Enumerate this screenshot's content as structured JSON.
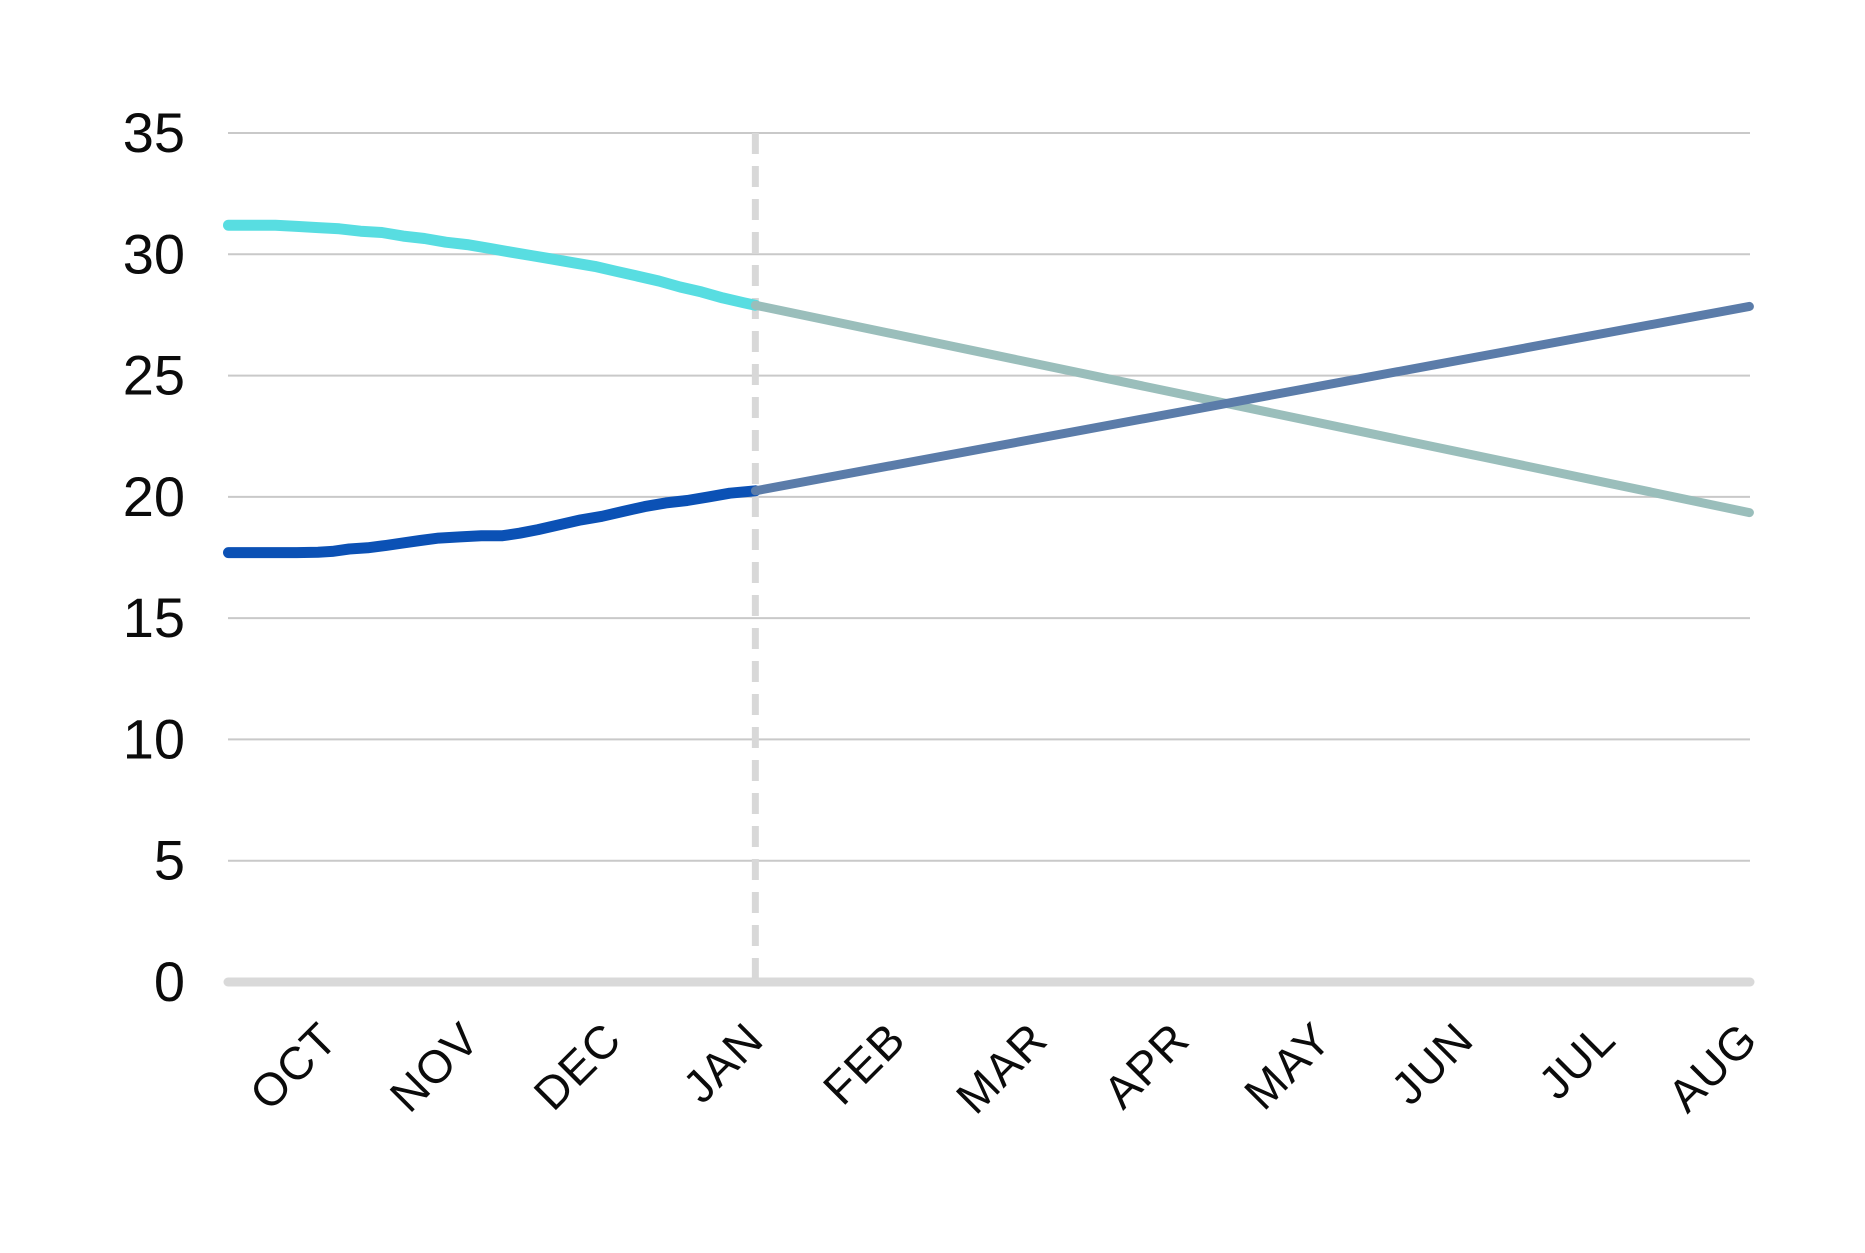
{
  "chart_data": {
    "type": "line",
    "title": "",
    "x_axis": {
      "categories": [
        "OCT",
        "NOV",
        "DEC",
        "JAN",
        "FEB",
        "MAR",
        "APR",
        "MAY",
        "JUN",
        "JUL",
        "AUG"
      ],
      "label_rotation_deg": -45
    },
    "y_axis": {
      "ticks": [
        0,
        5,
        10,
        15,
        20,
        25,
        30,
        35
      ],
      "range": [
        0,
        35
      ],
      "grid": true
    },
    "legend": "none",
    "forecast_divider_month": 3.08,
    "colors": {
      "actual_upper": "#58dde1",
      "actual_lower": "#0b51b5",
      "forecast_upper": "#9abebb",
      "forecast_lower": "#5b7ca9",
      "gridline": "#c9c9c9",
      "axis_baseline": "#d9d9d9",
      "divider": "#d8d8d8",
      "tick_text": "#0b0b0b"
    },
    "series": [
      {
        "name": "upper-actual",
        "color": "#58dde1",
        "width": 11,
        "points": [
          [
            -0.63,
            31.2
          ],
          [
            -0.45,
            31.2
          ],
          [
            -0.3,
            31.2
          ],
          [
            -0.15,
            31.15
          ],
          [
            0.0,
            31.1
          ],
          [
            0.15,
            31.05
          ],
          [
            0.3,
            30.95
          ],
          [
            0.45,
            30.9
          ],
          [
            0.6,
            30.75
          ],
          [
            0.75,
            30.65
          ],
          [
            0.9,
            30.5
          ],
          [
            1.05,
            30.4
          ],
          [
            1.2,
            30.25
          ],
          [
            1.35,
            30.1
          ],
          [
            1.5,
            29.95
          ],
          [
            1.65,
            29.8
          ],
          [
            1.8,
            29.65
          ],
          [
            1.95,
            29.5
          ],
          [
            2.1,
            29.3
          ],
          [
            2.25,
            29.1
          ],
          [
            2.4,
            28.9
          ],
          [
            2.55,
            28.65
          ],
          [
            2.7,
            28.45
          ],
          [
            2.85,
            28.2
          ],
          [
            3.0,
            28.0
          ],
          [
            3.08,
            27.9
          ]
        ]
      },
      {
        "name": "lower-actual",
        "color": "#0b51b5",
        "width": 11,
        "points": [
          [
            -0.63,
            17.7
          ],
          [
            -0.45,
            17.7
          ],
          [
            -0.3,
            17.7
          ],
          [
            -0.15,
            17.7
          ],
          [
            0.0,
            17.72
          ],
          [
            0.1,
            17.75
          ],
          [
            0.22,
            17.85
          ],
          [
            0.35,
            17.9
          ],
          [
            0.48,
            18.0
          ],
          [
            0.6,
            18.1
          ],
          [
            0.72,
            18.2
          ],
          [
            0.85,
            18.3
          ],
          [
            1.0,
            18.35
          ],
          [
            1.15,
            18.4
          ],
          [
            1.3,
            18.4
          ],
          [
            1.42,
            18.5
          ],
          [
            1.55,
            18.65
          ],
          [
            1.7,
            18.85
          ],
          [
            1.85,
            19.05
          ],
          [
            2.0,
            19.2
          ],
          [
            2.15,
            19.4
          ],
          [
            2.3,
            19.6
          ],
          [
            2.45,
            19.75
          ],
          [
            2.6,
            19.85
          ],
          [
            2.75,
            20.0
          ],
          [
            2.9,
            20.15
          ],
          [
            3.08,
            20.25
          ]
        ]
      },
      {
        "name": "upper-forecast",
        "color": "#9abebb",
        "width": 9,
        "points": [
          [
            3.08,
            27.9
          ],
          [
            10.08,
            19.35
          ]
        ]
      },
      {
        "name": "lower-forecast",
        "color": "#5b7ca9",
        "width": 9,
        "points": [
          [
            3.08,
            20.25
          ],
          [
            10.08,
            27.85
          ]
        ]
      }
    ],
    "monthly_values": {
      "upper_actual": {
        "OCT": 31.1,
        "NOV": 30.5,
        "DEC": 29.4,
        "JAN": 27.9
      },
      "lower_actual": {
        "OCT": 17.7,
        "NOV": 18.3,
        "DEC": 19.2,
        "JAN": 20.3
      },
      "upper_forecast": {
        "JAN": 27.9,
        "FEB": 26.7,
        "MAR": 25.5,
        "APR": 24.3,
        "MAY": 23.1,
        "JUN": 21.9,
        "JUL": 20.6,
        "AUG": 19.4
      },
      "lower_forecast": {
        "JAN": 20.3,
        "FEB": 21.3,
        "MAR": 22.4,
        "APR": 23.5,
        "MAY": 24.6,
        "JUN": 25.7,
        "JUL": 26.8,
        "AUG": 27.9
      }
    }
  }
}
